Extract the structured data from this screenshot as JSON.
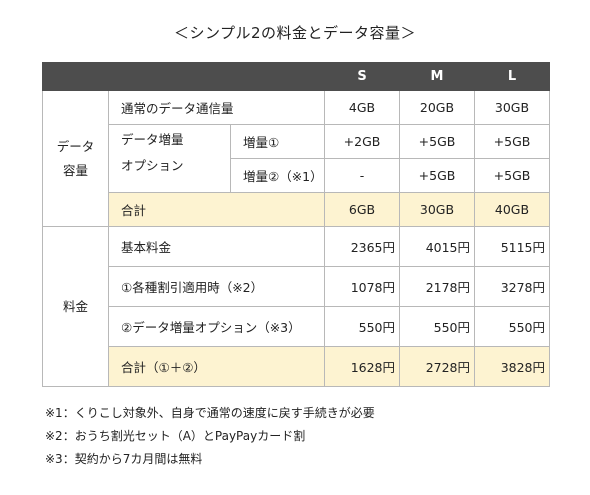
{
  "title": "＜シンプル2の料金とデータ容量＞",
  "columns": [
    "S",
    "M",
    "L"
  ],
  "data_section": {
    "label_line1": "データ",
    "label_line2": "容量",
    "normal": {
      "label": "通常のデータ通信量",
      "values": [
        "4GB",
        "20GB",
        "30GB"
      ]
    },
    "option_label_line1": "データ増量",
    "option_label_line2": "オプション",
    "boost1": {
      "label": "増量①",
      "values": [
        "+2GB",
        "+5GB",
        "+5GB"
      ]
    },
    "boost2": {
      "label": "増量②（※1）",
      "values": [
        "-",
        "+5GB",
        "+5GB"
      ]
    },
    "total": {
      "label": "合計",
      "values": [
        "6GB",
        "30GB",
        "40GB"
      ]
    }
  },
  "fee_section": {
    "label": "料金",
    "base": {
      "label": "基本料金",
      "values": [
        "2365円",
        "4015円",
        "5115円"
      ]
    },
    "discount": {
      "label": "①各種割引適用時（※2）",
      "values": [
        "1078円",
        "2178円",
        "3278円"
      ]
    },
    "option": {
      "label": "②データ増量オプション（※3）",
      "values": [
        "550円",
        "550円",
        "550円"
      ]
    },
    "total": {
      "label": "合計（①＋②）",
      "values": [
        "1628円",
        "2728円",
        "3828円"
      ]
    }
  },
  "notes": [
    "※1：くりこし対象外、自身で通常の速度に戻す手続きが必要",
    "※2：おうち割光セット（A）とPayPayカード割",
    "※3：契約から7カ月間は無料"
  ]
}
